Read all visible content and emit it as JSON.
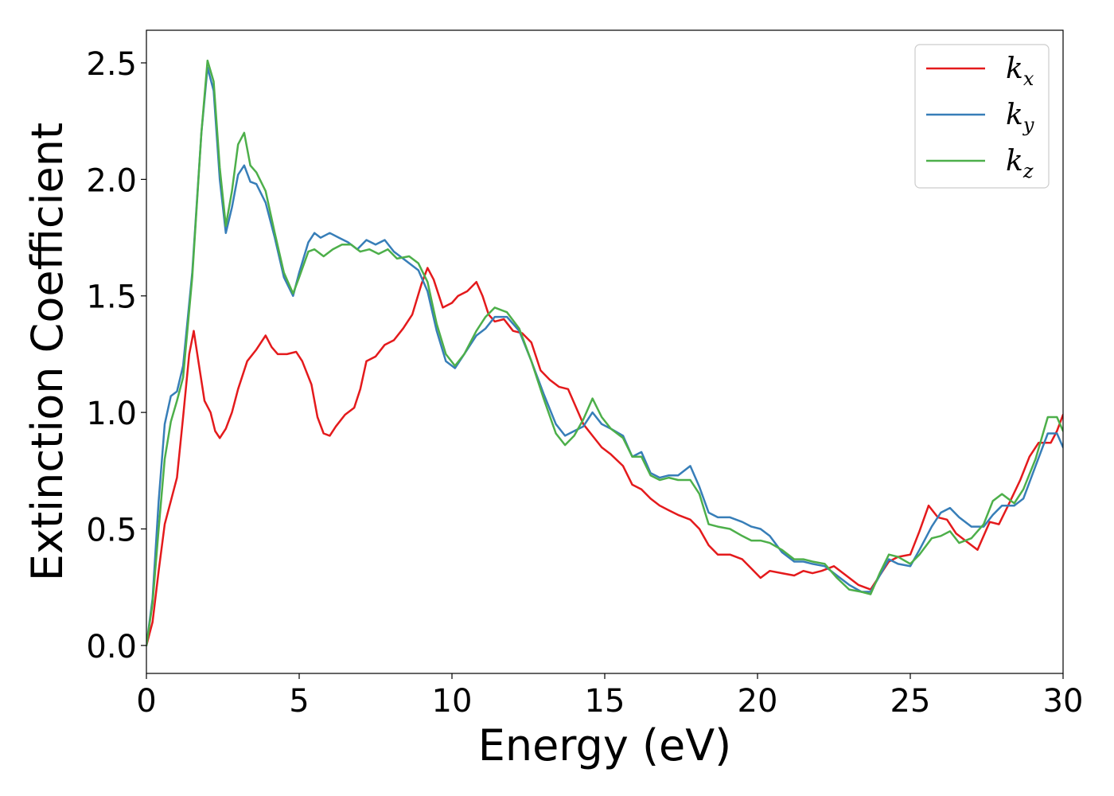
{
  "chart_data": {
    "type": "line",
    "xlabel": "Energy (eV)",
    "ylabel": "Extinction Coefficient",
    "xlim": [
      0,
      30
    ],
    "ylim": [
      -0.12,
      2.64
    ],
    "xticks": [
      0,
      5,
      10,
      15,
      20,
      25,
      30
    ],
    "xtick_labels": [
      "0",
      "5",
      "10",
      "15",
      "20",
      "25",
      "30"
    ],
    "yticks": [
      0.0,
      0.5,
      1.0,
      1.5,
      2.0,
      2.5
    ],
    "ytick_labels": [
      "0.0",
      "0.5",
      "1.0",
      "1.5",
      "2.0",
      "2.5"
    ],
    "grid": false,
    "legend_position": "top-right",
    "series": [
      {
        "name": "k_x",
        "legend_base": "k",
        "legend_sub": "x",
        "color": "#e41a1c",
        "points": [
          [
            0,
            0
          ],
          [
            0.2,
            0.1
          ],
          [
            0.4,
            0.32
          ],
          [
            0.6,
            0.52
          ],
          [
            0.8,
            0.62
          ],
          [
            1.0,
            0.72
          ],
          [
            1.2,
            0.98
          ],
          [
            1.4,
            1.25
          ],
          [
            1.55,
            1.35
          ],
          [
            1.7,
            1.22
          ],
          [
            1.9,
            1.05
          ],
          [
            2.1,
            1.0
          ],
          [
            2.25,
            0.92
          ],
          [
            2.4,
            0.89
          ],
          [
            2.6,
            0.93
          ],
          [
            2.8,
            1.0
          ],
          [
            3.0,
            1.1
          ],
          [
            3.3,
            1.22
          ],
          [
            3.6,
            1.27
          ],
          [
            3.9,
            1.33
          ],
          [
            4.1,
            1.28
          ],
          [
            4.3,
            1.25
          ],
          [
            4.6,
            1.25
          ],
          [
            4.9,
            1.26
          ],
          [
            5.1,
            1.22
          ],
          [
            5.4,
            1.12
          ],
          [
            5.6,
            0.98
          ],
          [
            5.8,
            0.91
          ],
          [
            6.0,
            0.9
          ],
          [
            6.2,
            0.94
          ],
          [
            6.5,
            0.99
          ],
          [
            6.8,
            1.02
          ],
          [
            7.0,
            1.1
          ],
          [
            7.2,
            1.22
          ],
          [
            7.5,
            1.24
          ],
          [
            7.8,
            1.29
          ],
          [
            8.1,
            1.31
          ],
          [
            8.4,
            1.36
          ],
          [
            8.7,
            1.42
          ],
          [
            9.0,
            1.55
          ],
          [
            9.2,
            1.62
          ],
          [
            9.4,
            1.57
          ],
          [
            9.7,
            1.45
          ],
          [
            10.0,
            1.47
          ],
          [
            10.2,
            1.5
          ],
          [
            10.5,
            1.52
          ],
          [
            10.8,
            1.56
          ],
          [
            11.0,
            1.5
          ],
          [
            11.2,
            1.42
          ],
          [
            11.4,
            1.39
          ],
          [
            11.7,
            1.4
          ],
          [
            12.0,
            1.35
          ],
          [
            12.3,
            1.34
          ],
          [
            12.6,
            1.3
          ],
          [
            12.9,
            1.18
          ],
          [
            13.2,
            1.14
          ],
          [
            13.5,
            1.11
          ],
          [
            13.8,
            1.1
          ],
          [
            14.0,
            1.04
          ],
          [
            14.3,
            0.95
          ],
          [
            14.6,
            0.9
          ],
          [
            14.9,
            0.85
          ],
          [
            15.2,
            0.82
          ],
          [
            15.6,
            0.77
          ],
          [
            15.9,
            0.69
          ],
          [
            16.2,
            0.67
          ],
          [
            16.5,
            0.63
          ],
          [
            16.8,
            0.6
          ],
          [
            17.1,
            0.58
          ],
          [
            17.4,
            0.56
          ],
          [
            17.8,
            0.54
          ],
          [
            18.1,
            0.5
          ],
          [
            18.4,
            0.43
          ],
          [
            18.7,
            0.39
          ],
          [
            19.1,
            0.39
          ],
          [
            19.5,
            0.37
          ],
          [
            19.8,
            0.33
          ],
          [
            20.1,
            0.29
          ],
          [
            20.4,
            0.32
          ],
          [
            20.8,
            0.31
          ],
          [
            21.2,
            0.3
          ],
          [
            21.5,
            0.32
          ],
          [
            21.8,
            0.31
          ],
          [
            22.1,
            0.32
          ],
          [
            22.5,
            0.34
          ],
          [
            22.9,
            0.3
          ],
          [
            23.3,
            0.26
          ],
          [
            23.7,
            0.24
          ],
          [
            24.0,
            0.3
          ],
          [
            24.3,
            0.36
          ],
          [
            24.6,
            0.38
          ],
          [
            25.0,
            0.39
          ],
          [
            25.3,
            0.49
          ],
          [
            25.6,
            0.6
          ],
          [
            25.9,
            0.55
          ],
          [
            26.2,
            0.54
          ],
          [
            26.5,
            0.48
          ],
          [
            26.8,
            0.45
          ],
          [
            27.2,
            0.41
          ],
          [
            27.6,
            0.53
          ],
          [
            27.9,
            0.52
          ],
          [
            28.2,
            0.6
          ],
          [
            28.6,
            0.71
          ],
          [
            28.9,
            0.81
          ],
          [
            29.2,
            0.87
          ],
          [
            29.6,
            0.87
          ],
          [
            29.8,
            0.92
          ],
          [
            30.0,
            0.99
          ]
        ]
      },
      {
        "name": "k_y",
        "legend_base": "k",
        "legend_sub": "y",
        "color": "#377eb8",
        "points": [
          [
            0,
            0
          ],
          [
            0.2,
            0.2
          ],
          [
            0.4,
            0.62
          ],
          [
            0.6,
            0.95
          ],
          [
            0.8,
            1.07
          ],
          [
            1.0,
            1.09
          ],
          [
            1.2,
            1.2
          ],
          [
            1.5,
            1.6
          ],
          [
            1.8,
            2.2
          ],
          [
            2.0,
            2.48
          ],
          [
            2.2,
            2.38
          ],
          [
            2.4,
            2.0
          ],
          [
            2.6,
            1.77
          ],
          [
            2.8,
            1.88
          ],
          [
            3.0,
            2.02
          ],
          [
            3.2,
            2.06
          ],
          [
            3.4,
            1.99
          ],
          [
            3.6,
            1.98
          ],
          [
            3.9,
            1.9
          ],
          [
            4.2,
            1.75
          ],
          [
            4.5,
            1.58
          ],
          [
            4.8,
            1.5
          ],
          [
            5.0,
            1.6
          ],
          [
            5.3,
            1.73
          ],
          [
            5.5,
            1.77
          ],
          [
            5.7,
            1.75
          ],
          [
            6.0,
            1.77
          ],
          [
            6.3,
            1.75
          ],
          [
            6.6,
            1.73
          ],
          [
            6.9,
            1.7
          ],
          [
            7.2,
            1.74
          ],
          [
            7.5,
            1.72
          ],
          [
            7.8,
            1.74
          ],
          [
            8.1,
            1.69
          ],
          [
            8.5,
            1.65
          ],
          [
            8.9,
            1.61
          ],
          [
            9.2,
            1.52
          ],
          [
            9.5,
            1.35
          ],
          [
            9.8,
            1.22
          ],
          [
            10.1,
            1.19
          ],
          [
            10.4,
            1.25
          ],
          [
            10.8,
            1.33
          ],
          [
            11.1,
            1.36
          ],
          [
            11.4,
            1.41
          ],
          [
            11.8,
            1.41
          ],
          [
            12.2,
            1.35
          ],
          [
            12.6,
            1.22
          ],
          [
            13.0,
            1.08
          ],
          [
            13.4,
            0.95
          ],
          [
            13.7,
            0.9
          ],
          [
            14.0,
            0.92
          ],
          [
            14.3,
            0.94
          ],
          [
            14.6,
            1.0
          ],
          [
            14.9,
            0.95
          ],
          [
            15.2,
            0.93
          ],
          [
            15.6,
            0.9
          ],
          [
            15.9,
            0.81
          ],
          [
            16.2,
            0.83
          ],
          [
            16.5,
            0.74
          ],
          [
            16.8,
            0.72
          ],
          [
            17.1,
            0.73
          ],
          [
            17.4,
            0.73
          ],
          [
            17.8,
            0.77
          ],
          [
            18.1,
            0.68
          ],
          [
            18.4,
            0.57
          ],
          [
            18.7,
            0.55
          ],
          [
            19.1,
            0.55
          ],
          [
            19.5,
            0.53
          ],
          [
            19.8,
            0.51
          ],
          [
            20.1,
            0.5
          ],
          [
            20.4,
            0.47
          ],
          [
            20.8,
            0.4
          ],
          [
            21.2,
            0.36
          ],
          [
            21.5,
            0.36
          ],
          [
            21.8,
            0.35
          ],
          [
            22.2,
            0.34
          ],
          [
            22.6,
            0.3
          ],
          [
            23.0,
            0.26
          ],
          [
            23.4,
            0.23
          ],
          [
            23.7,
            0.23
          ],
          [
            24.0,
            0.3
          ],
          [
            24.3,
            0.37
          ],
          [
            24.6,
            0.35
          ],
          [
            25.0,
            0.34
          ],
          [
            25.3,
            0.41
          ],
          [
            25.7,
            0.51
          ],
          [
            26.0,
            0.57
          ],
          [
            26.3,
            0.59
          ],
          [
            26.6,
            0.55
          ],
          [
            27.0,
            0.51
          ],
          [
            27.4,
            0.51
          ],
          [
            27.7,
            0.56
          ],
          [
            28.0,
            0.6
          ],
          [
            28.4,
            0.6
          ],
          [
            28.7,
            0.63
          ],
          [
            29.1,
            0.77
          ],
          [
            29.5,
            0.91
          ],
          [
            29.8,
            0.91
          ],
          [
            30.0,
            0.85
          ]
        ]
      },
      {
        "name": "k_z",
        "legend_base": "k",
        "legend_sub": "z",
        "color": "#4daf4a",
        "points": [
          [
            0,
            0
          ],
          [
            0.2,
            0.18
          ],
          [
            0.4,
            0.5
          ],
          [
            0.6,
            0.8
          ],
          [
            0.8,
            0.96
          ],
          [
            1.0,
            1.05
          ],
          [
            1.2,
            1.15
          ],
          [
            1.5,
            1.58
          ],
          [
            1.8,
            2.2
          ],
          [
            2.0,
            2.51
          ],
          [
            2.2,
            2.42
          ],
          [
            2.4,
            2.05
          ],
          [
            2.6,
            1.8
          ],
          [
            2.8,
            1.95
          ],
          [
            3.0,
            2.15
          ],
          [
            3.2,
            2.2
          ],
          [
            3.4,
            2.06
          ],
          [
            3.6,
            2.03
          ],
          [
            3.9,
            1.95
          ],
          [
            4.2,
            1.77
          ],
          [
            4.5,
            1.6
          ],
          [
            4.8,
            1.51
          ],
          [
            5.0,
            1.58
          ],
          [
            5.3,
            1.69
          ],
          [
            5.5,
            1.7
          ],
          [
            5.8,
            1.67
          ],
          [
            6.1,
            1.7
          ],
          [
            6.4,
            1.72
          ],
          [
            6.7,
            1.72
          ],
          [
            7.0,
            1.69
          ],
          [
            7.3,
            1.7
          ],
          [
            7.6,
            1.68
          ],
          [
            7.9,
            1.7
          ],
          [
            8.2,
            1.66
          ],
          [
            8.6,
            1.67
          ],
          [
            8.9,
            1.64
          ],
          [
            9.2,
            1.56
          ],
          [
            9.5,
            1.38
          ],
          [
            9.8,
            1.25
          ],
          [
            10.1,
            1.2
          ],
          [
            10.4,
            1.25
          ],
          [
            10.8,
            1.35
          ],
          [
            11.1,
            1.41
          ],
          [
            11.4,
            1.45
          ],
          [
            11.8,
            1.43
          ],
          [
            12.2,
            1.36
          ],
          [
            12.6,
            1.22
          ],
          [
            13.0,
            1.06
          ],
          [
            13.4,
            0.91
          ],
          [
            13.7,
            0.86
          ],
          [
            14.0,
            0.9
          ],
          [
            14.3,
            0.97
          ],
          [
            14.6,
            1.06
          ],
          [
            14.9,
            0.98
          ],
          [
            15.2,
            0.93
          ],
          [
            15.6,
            0.89
          ],
          [
            15.9,
            0.81
          ],
          [
            16.2,
            0.81
          ],
          [
            16.5,
            0.73
          ],
          [
            16.8,
            0.71
          ],
          [
            17.1,
            0.72
          ],
          [
            17.4,
            0.71
          ],
          [
            17.8,
            0.71
          ],
          [
            18.1,
            0.65
          ],
          [
            18.4,
            0.52
          ],
          [
            18.7,
            0.51
          ],
          [
            19.1,
            0.5
          ],
          [
            19.5,
            0.47
          ],
          [
            19.8,
            0.45
          ],
          [
            20.1,
            0.45
          ],
          [
            20.4,
            0.44
          ],
          [
            20.8,
            0.41
          ],
          [
            21.2,
            0.37
          ],
          [
            21.5,
            0.37
          ],
          [
            21.8,
            0.36
          ],
          [
            22.2,
            0.35
          ],
          [
            22.6,
            0.29
          ],
          [
            23.0,
            0.24
          ],
          [
            23.4,
            0.23
          ],
          [
            23.7,
            0.22
          ],
          [
            24.0,
            0.31
          ],
          [
            24.3,
            0.39
          ],
          [
            24.6,
            0.38
          ],
          [
            25.0,
            0.35
          ],
          [
            25.3,
            0.39
          ],
          [
            25.7,
            0.46
          ],
          [
            26.0,
            0.47
          ],
          [
            26.3,
            0.49
          ],
          [
            26.6,
            0.44
          ],
          [
            27.0,
            0.46
          ],
          [
            27.4,
            0.52
          ],
          [
            27.7,
            0.62
          ],
          [
            28.0,
            0.65
          ],
          [
            28.4,
            0.61
          ],
          [
            28.7,
            0.67
          ],
          [
            29.1,
            0.8
          ],
          [
            29.5,
            0.98
          ],
          [
            29.8,
            0.98
          ],
          [
            30.0,
            0.92
          ]
        ]
      }
    ]
  }
}
